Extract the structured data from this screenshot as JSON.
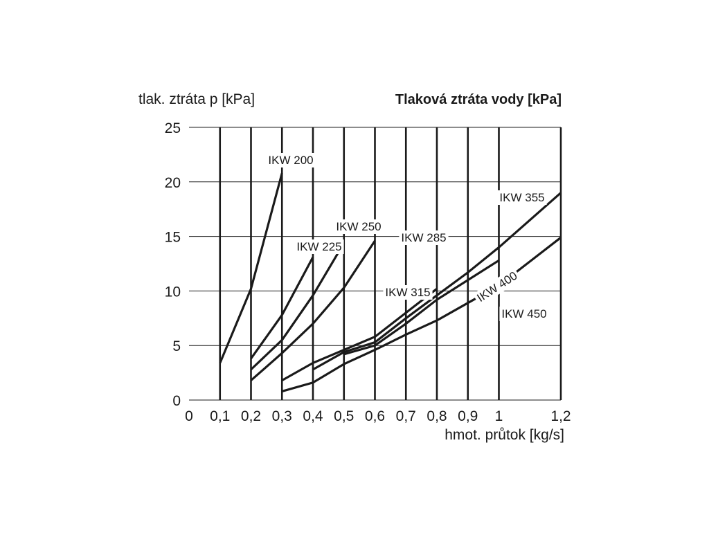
{
  "chart_data": {
    "type": "line",
    "title": "Tlaková ztráta vody [kPa]",
    "xlabel": "hmot. průtok [kg/s]",
    "ylabel": "tlak. ztráta p [kPa]",
    "xlim": [
      0,
      1.2
    ],
    "ylim": [
      0,
      25
    ],
    "x_ticks": [
      0,
      0.1,
      0.2,
      0.3,
      0.4,
      0.5,
      0.6,
      0.7,
      0.8,
      0.9,
      1,
      1.2
    ],
    "x_tick_labels": [
      "0",
      "0,1",
      "0,2",
      "0,3",
      "0,4",
      "0,5",
      "0,6",
      "0,7",
      "0,8",
      "0,9",
      "1",
      "1,2"
    ],
    "y_ticks": [
      0,
      5,
      10,
      15,
      20,
      25
    ],
    "y_tick_labels": [
      "0",
      "5",
      "10",
      "15",
      "20",
      "25"
    ],
    "grid": true,
    "series": [
      {
        "name": "IKW 200",
        "points": [
          [
            0.1,
            3.4
          ],
          [
            0.2,
            10.2
          ],
          [
            0.3,
            20.8
          ]
        ]
      },
      {
        "name": "IKW 225",
        "points": [
          [
            0.2,
            3.8
          ],
          [
            0.3,
            7.8
          ],
          [
            0.4,
            13.1
          ]
        ]
      },
      {
        "name": "IKW 250",
        "points": [
          [
            0.2,
            2.8
          ],
          [
            0.3,
            5.5
          ],
          [
            0.4,
            9.6
          ],
          [
            0.5,
            14.4
          ]
        ]
      },
      {
        "name": "IKW 285",
        "points": [
          [
            0.2,
            1.8
          ],
          [
            0.3,
            4.3
          ],
          [
            0.4,
            7.0
          ],
          [
            0.5,
            10.3
          ],
          [
            0.6,
            14.6
          ]
        ]
      },
      {
        "name": "IKW 315",
        "points": [
          [
            0.3,
            1.8
          ],
          [
            0.4,
            3.4
          ],
          [
            0.5,
            4.6
          ],
          [
            0.6,
            5.8
          ],
          [
            0.7,
            8.0
          ],
          [
            0.8,
            10.2
          ]
        ]
      },
      {
        "name": "IKW 355",
        "points": [
          [
            0.4,
            2.8
          ],
          [
            0.5,
            4.4
          ],
          [
            0.6,
            5.3
          ],
          [
            0.7,
            7.5
          ],
          [
            0.8,
            9.6
          ],
          [
            0.9,
            11.7
          ],
          [
            1.0,
            14.0
          ],
          [
            1.2,
            19.0
          ]
        ]
      },
      {
        "name": "IKW 400",
        "points": [
          [
            0.5,
            4.2
          ],
          [
            0.6,
            5.0
          ],
          [
            0.7,
            7.0
          ],
          [
            0.8,
            9.2
          ],
          [
            0.9,
            11.0
          ],
          [
            1.0,
            12.8
          ]
        ]
      },
      {
        "name": "IKW 450",
        "points": [
          [
            0.3,
            0.8
          ],
          [
            0.4,
            1.6
          ],
          [
            0.5,
            3.3
          ],
          [
            0.6,
            4.6
          ],
          [
            0.7,
            6.0
          ],
          [
            0.8,
            7.3
          ],
          [
            0.9,
            8.9
          ],
          [
            1.0,
            10.5
          ],
          [
            1.2,
            14.9
          ]
        ]
      }
    ]
  }
}
